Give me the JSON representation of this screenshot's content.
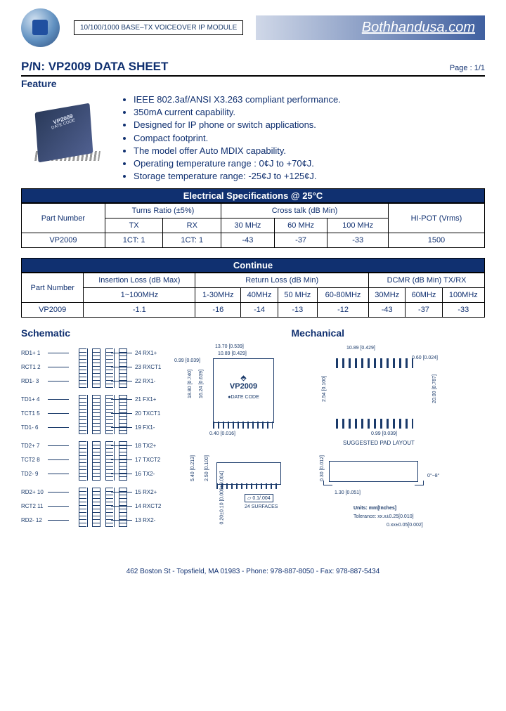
{
  "header": {
    "module_text": "10/100/1000 BASE–TX VOICEOVER IP MODULE",
    "brand": "Bothhandusa.com"
  },
  "title": "P/N: VP2009 DATA SHEET",
  "page_label": "Page : 1/1",
  "feature_heading": "Feature",
  "chip_label_top": "VP2009",
  "chip_label_bot": "DATE CODE",
  "features": [
    "IEEE 802.3af/ANSI X3.263 compliant performance.",
    "350mA current capability.",
    "Designed for IP phone or switch applications.",
    "Compact footprint.",
    "The model offer Auto MDIX capability.",
    "Operating temperature range : 0¢J to +70¢J.",
    "Storage temperature range: -25¢J to +125¢J."
  ],
  "spec_table1": {
    "title": "Electrical Specifications @ 25°C",
    "header_groups": [
      "Part Number",
      "Turns Ratio (±5%)",
      "Cross talk (dB Min)",
      "HI-POT (Vrms)"
    ],
    "sub_headers": [
      "TX",
      "RX",
      "30 MHz",
      "60 MHz",
      "100 MHz"
    ],
    "row": [
      "VP2009",
      "1CT: 1",
      "1CT: 1",
      "-43",
      "-37",
      "-33",
      "1500"
    ]
  },
  "spec_table2": {
    "title": "Continue",
    "header_groups": [
      "Part Number",
      "Insertion Loss (dB Max)",
      "Return Loss (dB  Min)",
      "DCMR (dB Min) TX/RX"
    ],
    "sub_headers": [
      "1~100MHz",
      "1-30MHz",
      "40MHz",
      "50 MHz",
      "60-80MHz",
      "30MHz",
      "60MHz",
      "100MHz"
    ],
    "row": [
      "VP2009",
      "-1.1",
      "-16",
      "-14",
      "-13",
      "-12",
      "-43",
      "-37",
      "-33"
    ]
  },
  "section_labels": {
    "schematic": "Schematic",
    "mechanical": "Mechanical"
  },
  "schematic_pins_left": [
    {
      "n": "1",
      "t": "RD1+"
    },
    {
      "n": "2",
      "t": "RCT1"
    },
    {
      "n": "3",
      "t": "RD1-"
    },
    {
      "n": "4",
      "t": "TD1+"
    },
    {
      "n": "5",
      "t": "TCT1"
    },
    {
      "n": "6",
      "t": "TD1-"
    },
    {
      "n": "7",
      "t": "TD2+"
    },
    {
      "n": "8",
      "t": "TCT2"
    },
    {
      "n": "9",
      "t": "TD2-"
    },
    {
      "n": "10",
      "t": "RD2+"
    },
    {
      "n": "11",
      "t": "RCT2"
    },
    {
      "n": "12",
      "t": "RD2-"
    }
  ],
  "schematic_pins_right": [
    {
      "n": "24",
      "t": "RX1+"
    },
    {
      "n": "23",
      "t": "RXCT1"
    },
    {
      "n": "22",
      "t": "RX1-"
    },
    {
      "n": "21",
      "t": "FX1+"
    },
    {
      "n": "20",
      "t": "TXCT1"
    },
    {
      "n": "19",
      "t": "FX1-"
    },
    {
      "n": "18",
      "t": "TX2+"
    },
    {
      "n": "17",
      "t": "TXCT2"
    },
    {
      "n": "16",
      "t": "TX2-"
    },
    {
      "n": "15",
      "t": "RX2+"
    },
    {
      "n": "14",
      "t": "RXCT2"
    },
    {
      "n": "13",
      "t": "RX2-"
    }
  ],
  "mechanical": {
    "pkg_label_top": "VP2009",
    "pkg_label_bot": "●DATE CODE",
    "dims": {
      "d1": "13.70 [0.539]",
      "d2": "10.89 [0.429]",
      "d3": "0.99 [0.039]",
      "d4": "18.80 [0.740]",
      "d5": "16.24 [0.639]",
      "d6": "0.40 [0.016]",
      "d7": "10.89 [0.429]",
      "d8": "0.60 [0.024]",
      "d9": "2.54 [0.100]",
      "d10": "20.00 [0.787]",
      "d11": "0.99 [0.039]",
      "d12": "5.40 [0.213]",
      "d13": "2.50 [0.100]",
      "d14": "0.20±0.10 [0.008±0.004]",
      "d15": "0.30 [0.012]",
      "d16": "1.30 [0.051]",
      "angle": "0°~8°",
      "flat": "0.1/.004",
      "surf": "24 SURFACES"
    },
    "pad_label": "SUGGESTED PAD LAYOUT",
    "units": "Units: mm[Inches]",
    "tol1": "Tolerance: xx.x±0.25[0.010]",
    "tol2": "0.xx±0.05[0.002]"
  },
  "footer": "462 Boston St - Topsfield, MA 01983 - Phone: 978-887-8050 - Fax: 978-887-5434"
}
